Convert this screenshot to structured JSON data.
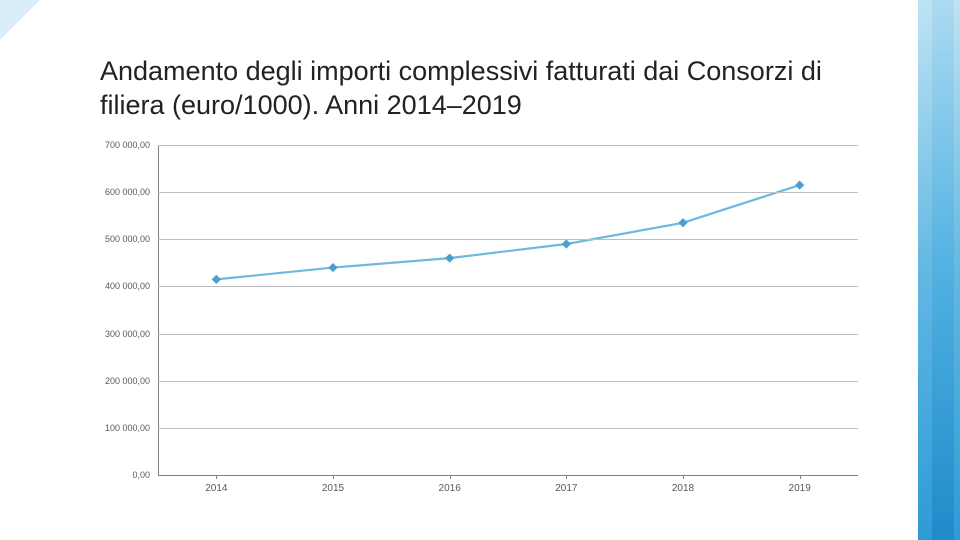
{
  "title": "Andamento degli importi complessivi fatturati dai Consorzi di filiera (euro/1000). Anni 2014–2019",
  "chart": {
    "type": "line",
    "categories": [
      "2014",
      "2015",
      "2016",
      "2017",
      "2018",
      "2019"
    ],
    "values": [
      415000,
      440000,
      460000,
      490000,
      535000,
      615000
    ],
    "ylim": [
      0,
      700000
    ],
    "ytick_step": 100000,
    "ytick_labels": [
      "0,00",
      "100 000,00",
      "200 000,00",
      "300 000,00",
      "400 000,00",
      "500 000,00",
      "600 000,00",
      "700 000,00"
    ],
    "line_color": "#6db8df",
    "marker_color": "#4a9ed0",
    "marker_shape": "diamond",
    "marker_size": 6,
    "line_width": 2.2,
    "grid_color": "#bfbfbf",
    "axis_color": "#808080",
    "background_color": "#ffffff",
    "title_fontsize": 27,
    "label_fontsize": 9
  }
}
